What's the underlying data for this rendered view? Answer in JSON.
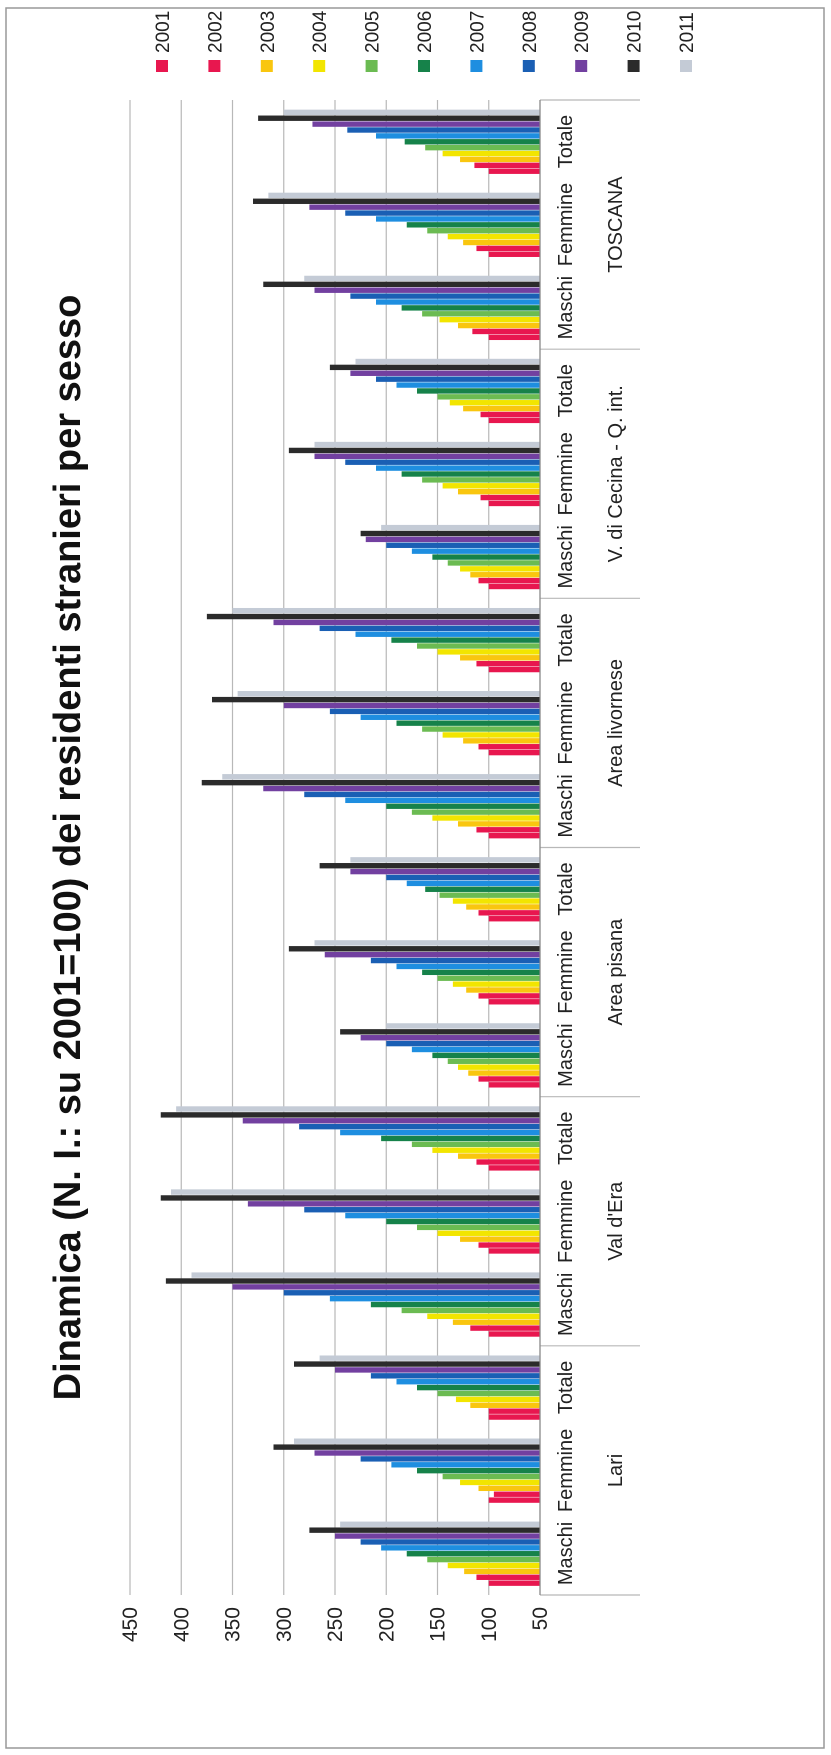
{
  "chart_data": {
    "type": "bar",
    "orientation": "horizontal",
    "title": "Dinamica (N. I.: su 2001=100) dei residenti stranieri per sesso",
    "xlim": [
      50,
      450
    ],
    "ticks": [
      50,
      100,
      150,
      200,
      250,
      300,
      350,
      400,
      450
    ],
    "grid": true,
    "legend_position": "right",
    "areas": [
      "Lari",
      "Val d'Era",
      "Area pisana",
      "Area livornese",
      "V. di Cecina - Q. int.",
      "TOSCANA"
    ],
    "categories": [
      {
        "sub": "Maschi",
        "area": "Lari"
      },
      {
        "sub": "Femmine",
        "area": "Lari"
      },
      {
        "sub": "Totale",
        "area": "Lari"
      },
      {
        "sub": "Maschi",
        "area": "Val d'Era"
      },
      {
        "sub": "Femmine",
        "area": "Val d'Era"
      },
      {
        "sub": "Totale",
        "area": "Val d'Era"
      },
      {
        "sub": "Maschi",
        "area": "Area pisana"
      },
      {
        "sub": "Femmine",
        "area": "Area pisana"
      },
      {
        "sub": "Totale",
        "area": "Area pisana"
      },
      {
        "sub": "Maschi",
        "area": "Area livornese"
      },
      {
        "sub": "Femmine",
        "area": "Area livornese"
      },
      {
        "sub": "Totale",
        "area": "Area livornese"
      },
      {
        "sub": "Maschi",
        "area": "V. di Cecina - Q. int."
      },
      {
        "sub": "Femmine",
        "area": "V. di Cecina - Q. int."
      },
      {
        "sub": "Totale",
        "area": "V. di Cecina - Q. int."
      },
      {
        "sub": "Maschi",
        "area": "TOSCANA"
      },
      {
        "sub": "Femmine",
        "area": "TOSCANA"
      },
      {
        "sub": "Totale",
        "area": "TOSCANA"
      }
    ],
    "series": [
      {
        "name": "2001",
        "color": "#e8174f",
        "values": [
          100,
          100,
          100,
          100,
          100,
          100,
          100,
          100,
          100,
          100,
          100,
          100,
          100,
          100,
          100,
          100,
          100,
          100
        ]
      },
      {
        "name": "2002",
        "color": "#e8174f",
        "values": [
          112,
          95,
          100,
          118,
          110,
          112,
          110,
          110,
          110,
          112,
          110,
          112,
          110,
          108,
          108,
          116,
          112,
          114
        ]
      },
      {
        "name": "2003",
        "color": "#f9c60f",
        "values": [
          124,
          110,
          118,
          135,
          128,
          130,
          120,
          122,
          122,
          130,
          125,
          128,
          118,
          130,
          125,
          130,
          125,
          128
        ]
      },
      {
        "name": "2004",
        "color": "#f2e500",
        "values": [
          140,
          128,
          132,
          160,
          150,
          155,
          130,
          135,
          135,
          155,
          145,
          150,
          128,
          145,
          138,
          148,
          140,
          145
        ]
      },
      {
        "name": "2005",
        "color": "#6bbb52",
        "values": [
          160,
          145,
          150,
          185,
          170,
          175,
          140,
          150,
          148,
          175,
          165,
          170,
          140,
          165,
          150,
          165,
          160,
          162
        ]
      },
      {
        "name": "2006",
        "color": "#16824a",
        "values": [
          180,
          170,
          170,
          215,
          200,
          205,
          155,
          165,
          162,
          200,
          190,
          195,
          155,
          185,
          170,
          185,
          180,
          182
        ]
      },
      {
        "name": "2007",
        "color": "#1e8ee0",
        "values": [
          205,
          195,
          190,
          255,
          240,
          245,
          175,
          190,
          180,
          240,
          225,
          230,
          175,
          210,
          190,
          210,
          210,
          210
        ]
      },
      {
        "name": "2008",
        "color": "#1a5fb4",
        "values": [
          225,
          225,
          215,
          300,
          280,
          285,
          200,
          215,
          200,
          280,
          255,
          265,
          200,
          240,
          210,
          235,
          240,
          238
        ]
      },
      {
        "name": "2009",
        "color": "#7240a0",
        "values": [
          250,
          270,
          250,
          350,
          335,
          340,
          225,
          260,
          235,
          320,
          300,
          310,
          220,
          270,
          235,
          270,
          275,
          272
        ]
      },
      {
        "name": "2010",
        "color": "#2b2b2b",
        "values": [
          275,
          310,
          290,
          415,
          420,
          420,
          245,
          295,
          265,
          380,
          370,
          375,
          225,
          295,
          255,
          320,
          330,
          325
        ]
      },
      {
        "name": "2011",
        "color": "#c4cbd6",
        "values": [
          245,
          290,
          265,
          390,
          410,
          405,
          200,
          270,
          235,
          360,
          345,
          350,
          205,
          270,
          230,
          280,
          315,
          300
        ]
      }
    ]
  }
}
